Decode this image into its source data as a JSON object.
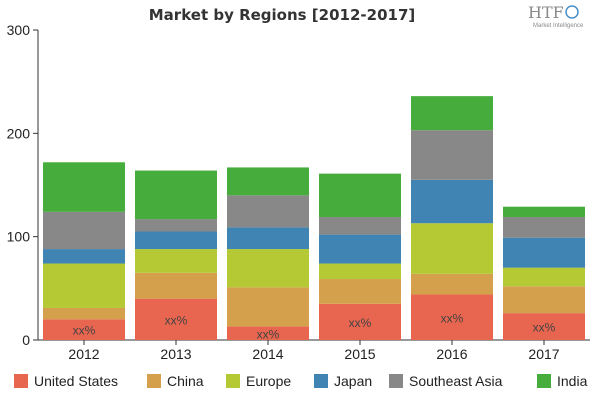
{
  "chart_data": {
    "type": "bar",
    "stacked": true,
    "title": "Market by Regions [2012-2017]",
    "categories": [
      "2012",
      "2013",
      "2014",
      "2015",
      "2016",
      "2017"
    ],
    "ylim": [
      0,
      300
    ],
    "yticks": [
      0,
      100,
      200,
      300
    ],
    "grid": false,
    "legend_position": "bottom",
    "series": [
      {
        "name": "United States",
        "color": "#e8654f",
        "values": [
          20,
          40,
          13,
          35,
          44,
          26
        ]
      },
      {
        "name": "China",
        "color": "#d4a04c",
        "values": [
          11,
          25,
          38,
          24,
          20,
          26
        ]
      },
      {
        "name": "Europe",
        "color": "#b5c934",
        "values": [
          43,
          23,
          37,
          15,
          49,
          18
        ]
      },
      {
        "name": "Japan",
        "color": "#3f84b3",
        "values": [
          14,
          17,
          21,
          28,
          42,
          29
        ]
      },
      {
        "name": "Southeast Asia",
        "color": "#888888",
        "values": [
          36,
          12,
          31,
          17,
          48,
          20
        ]
      },
      {
        "name": "India",
        "color": "#46ad3c",
        "values": [
          48,
          47,
          27,
          42,
          33,
          10
        ]
      }
    ],
    "annotations": [
      "xx%",
      "xx%",
      "xx%",
      "xx%",
      "xx%",
      "xx%"
    ]
  },
  "logo": {
    "text": "HTF",
    "subtitle": "Market Intelligence"
  }
}
